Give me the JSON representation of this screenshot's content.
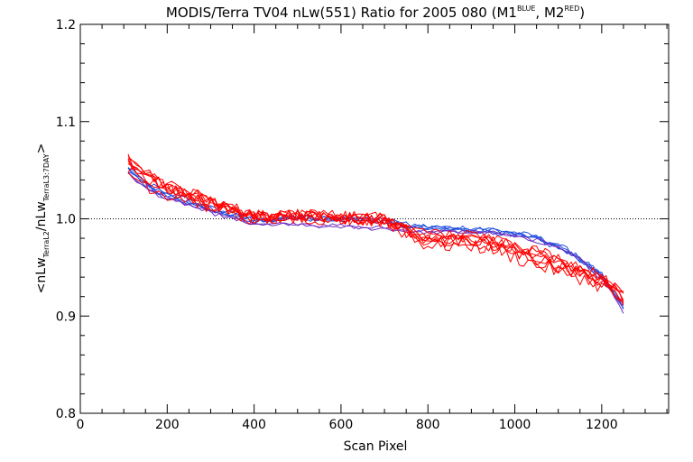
{
  "chart_data": {
    "type": "line",
    "title": {
      "main": "MODIS/Terra TV04 nLw(551) Ratio for 2005 080 (M1",
      "sup1": "BLUE",
      "mid": ", M2",
      "sup2": "RED",
      "end": ")"
    },
    "xlabel": "Scan Pixel",
    "ylabel": {
      "open": "<nLw",
      "sub1": "TerraL2",
      "mid": "/nLw",
      "sub2": "TerraL3:7DAY",
      "close": ">"
    },
    "xlim": [
      0,
      1354
    ],
    "ylim": [
      0.8,
      1.2
    ],
    "xticks": [
      0,
      200,
      400,
      600,
      800,
      1000,
      1200
    ],
    "yticks": [
      0.8,
      0.9,
      1.0,
      1.1,
      1.2
    ],
    "ytick_labels": [
      "0.8",
      "0.9",
      "1.0",
      "1.1",
      "1.2"
    ],
    "reference_line": 1.0,
    "grid": false,
    "series_colors": {
      "blue": "#2050e0",
      "red": "#ff0000",
      "purple": "#7030c0"
    },
    "base_curve": {
      "x": [
        110,
        150,
        200,
        250,
        300,
        350,
        400,
        450,
        500,
        550,
        600,
        650,
        700,
        750,
        800,
        850,
        900,
        950,
        1000,
        1050,
        1100,
        1150,
        1200,
        1250
      ],
      "y": [
        1.053,
        1.04,
        1.027,
        1.022,
        1.013,
        1.007,
        1.0,
        1.001,
        1.002,
        1.0,
        1.0,
        0.999,
        0.998,
        0.991,
        0.987,
        0.986,
        0.985,
        0.983,
        0.979,
        0.974,
        0.968,
        0.958,
        0.943,
        0.918
      ]
    },
    "series": [
      {
        "color": "blue",
        "offsets": [
          -0.002,
          -0.004,
          -0.003,
          -0.004,
          -0.003,
          -0.003,
          -0.002,
          -0.001,
          0.0,
          0.0,
          0.0,
          0.0,
          0.0,
          0.002,
          0.004,
          0.004,
          0.004,
          0.005,
          0.006,
          0.006,
          0.004,
          0.002,
          0.0,
          -0.008
        ],
        "noise": 0.003
      },
      {
        "color": "blue",
        "offsets": [
          -0.004,
          -0.006,
          -0.005,
          -0.006,
          -0.004,
          -0.004,
          -0.003,
          -0.002,
          -0.001,
          0.0,
          0.0,
          0.0,
          0.001,
          0.003,
          0.005,
          0.005,
          0.006,
          0.006,
          0.007,
          0.007,
          0.005,
          0.003,
          -0.002,
          -0.012
        ],
        "noise": 0.003
      },
      {
        "color": "blue",
        "offsets": [
          0.0,
          -0.002,
          -0.001,
          -0.003,
          -0.002,
          -0.002,
          -0.001,
          -0.001,
          0.0,
          0.001,
          0.001,
          0.001,
          0.001,
          0.002,
          0.003,
          0.003,
          0.003,
          0.004,
          0.004,
          0.004,
          0.002,
          0.0,
          -0.003,
          -0.006
        ],
        "noise": 0.003
      },
      {
        "color": "blue",
        "offsets": [
          -0.003,
          -0.005,
          -0.004,
          -0.005,
          -0.003,
          -0.002,
          -0.002,
          -0.001,
          0.0,
          0.0,
          0.0,
          0.0,
          0.0,
          0.001,
          0.002,
          0.003,
          0.003,
          0.003,
          0.004,
          0.005,
          0.003,
          0.001,
          -0.004,
          -0.01
        ],
        "noise": 0.003
      },
      {
        "color": "purple",
        "offsets": [
          -0.005,
          -0.008,
          -0.006,
          -0.007,
          -0.006,
          -0.006,
          -0.005,
          -0.006,
          -0.007,
          -0.007,
          -0.007,
          -0.008,
          -0.007,
          -0.003,
          0.0,
          0.001,
          0.002,
          0.003,
          0.003,
          0.004,
          0.004,
          0.001,
          -0.002,
          -0.009
        ],
        "noise": 0.002
      },
      {
        "color": "purple",
        "offsets": [
          -0.006,
          -0.009,
          -0.007,
          -0.008,
          -0.007,
          -0.007,
          -0.006,
          -0.007,
          -0.008,
          -0.008,
          -0.008,
          -0.009,
          -0.008,
          -0.004,
          -0.001,
          0.0,
          0.001,
          0.002,
          0.002,
          0.003,
          0.003,
          0.0,
          -0.003,
          -0.015
        ],
        "noise": 0.002
      },
      {
        "color": "red",
        "offsets": [
          0.006,
          0.006,
          0.006,
          0.004,
          0.005,
          0.004,
          0.003,
          0.002,
          0.001,
          0.001,
          0.002,
          0.002,
          0.002,
          -0.003,
          -0.008,
          -0.006,
          -0.005,
          -0.007,
          -0.01,
          -0.012,
          -0.014,
          -0.012,
          -0.006,
          0.0
        ],
        "noise": 0.006
      },
      {
        "color": "red",
        "offsets": [
          0.004,
          0.004,
          0.005,
          0.003,
          0.004,
          0.003,
          0.003,
          0.002,
          0.002,
          0.002,
          0.001,
          0.002,
          0.002,
          -0.002,
          -0.006,
          -0.005,
          -0.004,
          -0.006,
          -0.008,
          -0.011,
          -0.012,
          -0.01,
          -0.005,
          0.002
        ],
        "noise": 0.006
      },
      {
        "color": "red",
        "offsets": [
          0.008,
          0.005,
          0.005,
          0.004,
          0.003,
          0.003,
          0.002,
          0.001,
          0.001,
          0.0,
          0.001,
          0.001,
          0.001,
          -0.004,
          -0.01,
          -0.009,
          -0.008,
          -0.01,
          -0.013,
          -0.016,
          -0.016,
          -0.013,
          -0.008,
          -0.002
        ],
        "noise": 0.007
      },
      {
        "color": "red",
        "offsets": [
          0.002,
          0.003,
          0.004,
          0.003,
          0.002,
          0.002,
          0.001,
          0.001,
          0.0,
          0.0,
          0.0,
          0.001,
          0.001,
          -0.005,
          -0.012,
          -0.011,
          -0.01,
          -0.012,
          -0.015,
          -0.018,
          -0.018,
          -0.016,
          -0.01,
          0.004
        ],
        "noise": 0.007
      },
      {
        "color": "red",
        "offsets": [
          0.009,
          0.01,
          0.008,
          0.006,
          0.006,
          0.005,
          0.004,
          0.003,
          0.002,
          0.003,
          0.003,
          0.003,
          0.003,
          0.0,
          -0.003,
          -0.002,
          -0.002,
          -0.003,
          -0.005,
          -0.006,
          -0.008,
          -0.008,
          -0.002,
          0.003
        ],
        "noise": 0.006
      },
      {
        "color": "red",
        "offsets": [
          -0.006,
          -0.004,
          -0.002,
          -0.001,
          0.0,
          0.001,
          0.001,
          0.0,
          0.0,
          0.001,
          0.001,
          0.0,
          0.0,
          -0.006,
          -0.014,
          -0.013,
          -0.012,
          -0.014,
          -0.018,
          -0.022,
          -0.021,
          -0.018,
          -0.012,
          -0.003
        ],
        "noise": 0.008
      },
      {
        "color": "red",
        "offsets": [
          0.005,
          0.007,
          0.006,
          0.005,
          0.004,
          0.004,
          0.003,
          0.002,
          0.002,
          0.002,
          0.002,
          0.002,
          0.002,
          -0.001,
          -0.005,
          -0.004,
          -0.003,
          -0.004,
          -0.006,
          -0.009,
          -0.01,
          -0.009,
          -0.004,
          0.005
        ],
        "noise": 0.006
      },
      {
        "color": "red",
        "offsets": [
          0.001,
          0.002,
          0.003,
          0.002,
          0.001,
          0.001,
          0.0,
          0.0,
          -0.001,
          0.0,
          0.0,
          0.0,
          0.0,
          -0.004,
          -0.009,
          -0.008,
          -0.007,
          -0.009,
          -0.012,
          -0.015,
          -0.015,
          -0.013,
          -0.007,
          0.001
        ],
        "noise": 0.007
      }
    ]
  }
}
